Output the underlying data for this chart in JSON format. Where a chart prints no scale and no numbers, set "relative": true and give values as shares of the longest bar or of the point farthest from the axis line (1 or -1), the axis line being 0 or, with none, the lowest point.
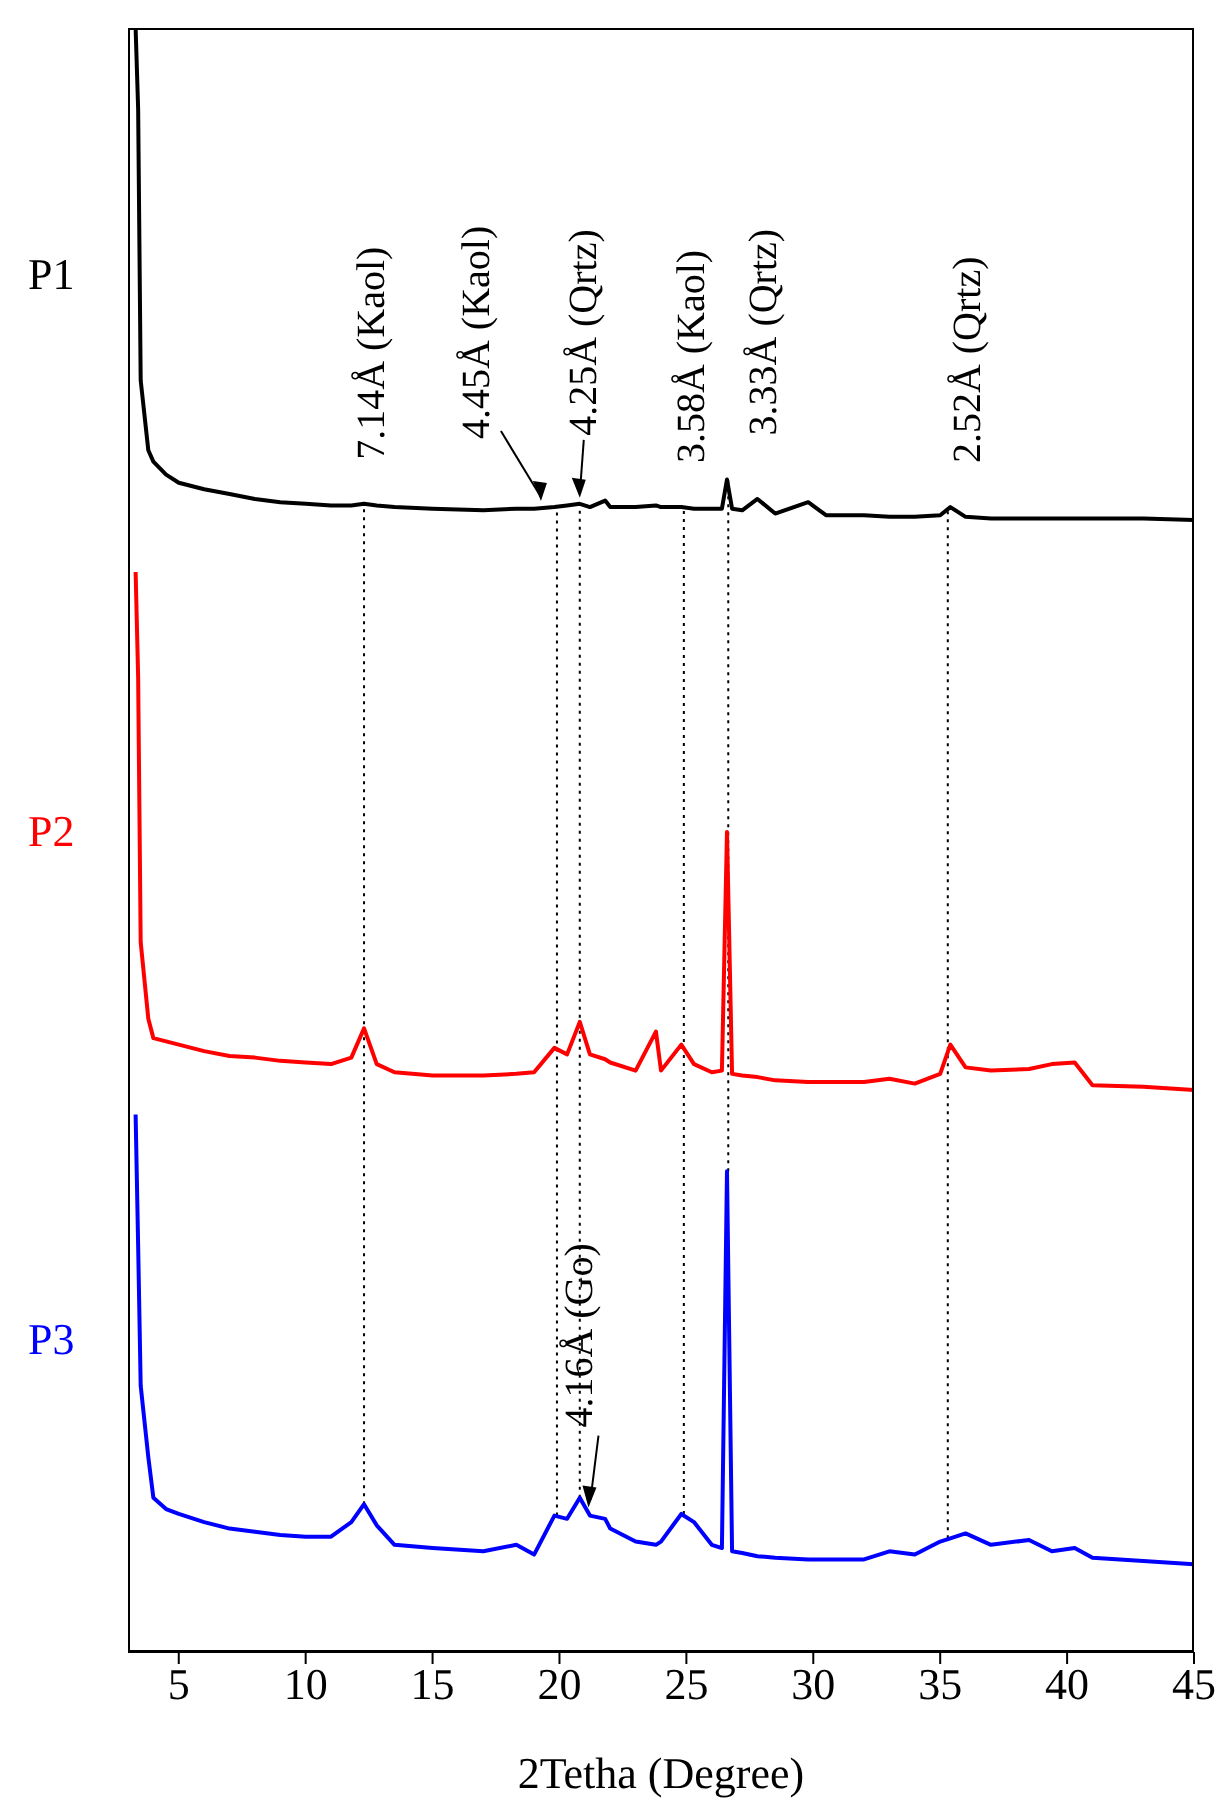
{
  "chart_data": {
    "type": "line",
    "relative": true,
    "xlabel": "2Tetha (Degree)",
    "xlim": [
      3,
      45
    ],
    "xticks": [
      5,
      10,
      15,
      20,
      25,
      30,
      35,
      40,
      45
    ],
    "line_style": "solid",
    "marker": "none",
    "x": [
      3.3,
      3.4,
      3.5,
      3.8,
      4,
      4.5,
      5,
      6,
      7,
      8,
      9,
      10,
      11,
      11.8,
      12.3,
      12.8,
      13.5,
      15,
      17,
      18.3,
      19,
      19.8,
      20.3,
      20.8,
      21.2,
      21.8,
      22,
      23,
      23.8,
      24,
      24.8,
      25.3,
      26,
      26.4,
      26.6,
      26.8,
      27.2,
      27.8,
      28.5,
      29.8,
      30.5,
      32,
      33,
      34,
      35,
      35.4,
      36,
      37,
      38.5,
      39.4,
      40.3,
      41,
      43,
      45
    ],
    "series": [
      {
        "name": "P1",
        "color": "#000000",
        "values": [
          1.0,
          0.95,
          0.783,
          0.74,
          0.733,
          0.725,
          0.72,
          0.716,
          0.713,
          0.71,
          0.708,
          0.707,
          0.706,
          0.706,
          0.707,
          0.706,
          0.705,
          0.704,
          0.703,
          0.704,
          0.704,
          0.705,
          0.706,
          0.707,
          0.705,
          0.709,
          0.705,
          0.705,
          0.706,
          0.705,
          0.705,
          0.704,
          0.704,
          0.704,
          0.722,
          0.704,
          0.703,
          0.71,
          0.701,
          0.708,
          0.7,
          0.7,
          0.699,
          0.699,
          0.7,
          0.705,
          0.699,
          0.698,
          0.698,
          0.698,
          0.698,
          0.698,
          0.698,
          0.697
        ]
      },
      {
        "name": "P2",
        "color": "#ff0000",
        "values": [
          0.665,
          0.6,
          0.437,
          0.39,
          0.378,
          0.376,
          0.374,
          0.37,
          0.367,
          0.366,
          0.364,
          0.363,
          0.362,
          0.366,
          0.384,
          0.362,
          0.357,
          0.355,
          0.355,
          0.356,
          0.357,
          0.372,
          0.368,
          0.388,
          0.368,
          0.365,
          0.363,
          0.358,
          0.382,
          0.358,
          0.374,
          0.362,
          0.357,
          0.358,
          0.505,
          0.356,
          0.355,
          0.354,
          0.352,
          0.351,
          0.351,
          0.351,
          0.353,
          0.35,
          0.356,
          0.374,
          0.36,
          0.358,
          0.359,
          0.362,
          0.363,
          0.349,
          0.348,
          0.346
        ]
      },
      {
        "name": "P3",
        "color": "#0000ff",
        "values": [
          0.331,
          0.25,
          0.164,
          0.12,
          0.095,
          0.088,
          0.085,
          0.08,
          0.076,
          0.074,
          0.072,
          0.071,
          0.071,
          0.08,
          0.091,
          0.078,
          0.066,
          0.064,
          0.062,
          0.066,
          0.06,
          0.084,
          0.082,
          0.095,
          0.084,
          0.082,
          0.076,
          0.068,
          0.066,
          0.068,
          0.085,
          0.08,
          0.066,
          0.064,
          0.296,
          0.062,
          0.061,
          0.059,
          0.058,
          0.057,
          0.057,
          0.057,
          0.062,
          0.06,
          0.068,
          0.07,
          0.073,
          0.066,
          0.069,
          0.062,
          0.064,
          0.058,
          0.056,
          0.054
        ]
      }
    ],
    "ref_lines": [
      {
        "axis": "x",
        "value": 12.3,
        "label": "7.14Å (Kaol)",
        "color": "#000000",
        "line_style": "dotted"
      },
      {
        "axis": "x",
        "value": 19.9,
        "label": "4.45Å (Kaol)",
        "color": "#000000",
        "line_style": "dotted"
      },
      {
        "axis": "x",
        "value": 20.8,
        "label": "4.25Å (Qrtz)",
        "color": "#000000",
        "line_style": "dotted"
      },
      {
        "axis": "x",
        "value": 24.9,
        "label": "3.58Å (Kaol)",
        "color": "#000000",
        "line_style": "dotted"
      },
      {
        "axis": "x",
        "value": 26.65,
        "label": "3.33Å (Qrtz)",
        "color": "#000000",
        "line_style": "dotted"
      },
      {
        "axis": "x",
        "value": 35.3,
        "label": "2.52Å (Qrtz)",
        "color": "#000000",
        "line_style": "dotted"
      }
    ],
    "annotations": [
      {
        "text": "4.16Å (Go)",
        "x": 21.3,
        "y": 0.084
      }
    ]
  }
}
